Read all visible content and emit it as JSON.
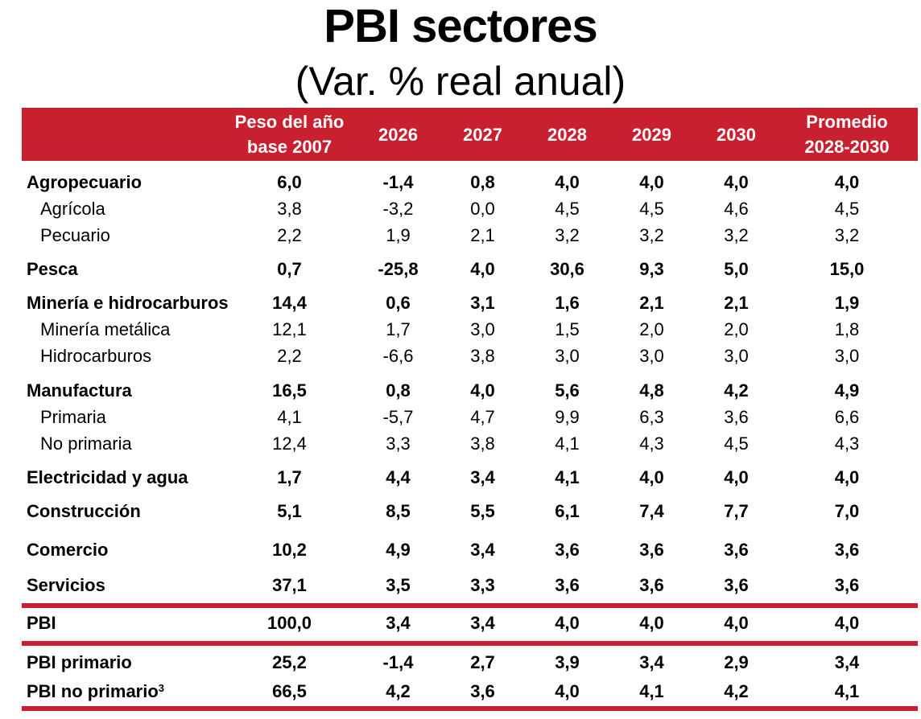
{
  "title": "PBI sectores",
  "subtitle": "(Var. % real anual)",
  "header": {
    "label": "",
    "weight_line1": "Peso del año",
    "weight_line2": "base 2007",
    "y2026": "2026",
    "y2027": "2027",
    "y2028": "2028",
    "y2029": "2029",
    "y2030": "2030",
    "avg_line1": "Promedio",
    "avg_line2": "2028-2030"
  },
  "accent_color": "#c8202f",
  "rows": [
    {
      "label": "Agropecuario",
      "bold": true,
      "values": [
        "6,0",
        "-1,4",
        "0,8",
        "4,0",
        "4,0",
        "4,0",
        "4,0"
      ]
    },
    {
      "label": "Agrícola",
      "bold": false,
      "values": [
        "3,8",
        "-3,2",
        "0,0",
        "4,5",
        "4,5",
        "4,6",
        "4,5"
      ]
    },
    {
      "label": "Pecuario",
      "bold": false,
      "values": [
        "2,2",
        "1,9",
        "2,1",
        "3,2",
        "3,2",
        "3,2",
        "3,2"
      ]
    },
    {
      "label": "Pesca",
      "bold": true,
      "values": [
        "0,7",
        "-25,8",
        "4,0",
        "30,6",
        "9,3",
        "5,0",
        "15,0"
      ]
    },
    {
      "label": "Minería e hidrocarburos",
      "bold": true,
      "values": [
        "14,4",
        "0,6",
        "3,1",
        "1,6",
        "2,1",
        "2,1",
        "1,9"
      ]
    },
    {
      "label": "Minería metálica",
      "bold": false,
      "values": [
        "12,1",
        "1,7",
        "3,0",
        "1,5",
        "2,0",
        "2,0",
        "1,8"
      ]
    },
    {
      "label": "Hidrocarburos",
      "bold": false,
      "values": [
        "2,2",
        "-6,6",
        "3,8",
        "3,0",
        "3,0",
        "3,0",
        "3,0"
      ]
    },
    {
      "label": "Manufactura",
      "bold": true,
      "values": [
        "16,5",
        "0,8",
        "4,0",
        "5,6",
        "4,8",
        "4,2",
        "4,9"
      ]
    },
    {
      "label": "Primaria",
      "bold": false,
      "values": [
        "4,1",
        "-5,7",
        "4,7",
        "9,9",
        "6,3",
        "3,6",
        "6,6"
      ]
    },
    {
      "label": "No primaria",
      "bold": false,
      "values": [
        "12,4",
        "3,3",
        "3,8",
        "4,1",
        "4,3",
        "4,5",
        "4,3"
      ]
    },
    {
      "label": "Electricidad y agua",
      "bold": true,
      "values": [
        "1,7",
        "4,4",
        "3,4",
        "4,1",
        "4,0",
        "4,0",
        "4,0"
      ]
    },
    {
      "label": "Construcción",
      "bold": true,
      "values": [
        "5,1",
        "8,5",
        "5,5",
        "6,1",
        "7,4",
        "7,7",
        "7,0"
      ]
    },
    {
      "label": "Comercio",
      "bold": true,
      "values": [
        "10,2",
        "4,9",
        "3,4",
        "3,6",
        "3,6",
        "3,6",
        "3,6"
      ]
    },
    {
      "label": "Servicios",
      "bold": true,
      "values": [
        "37,1",
        "3,5",
        "3,3",
        "3,6",
        "3,6",
        "3,6",
        "3,6"
      ]
    },
    {
      "label": "PBI",
      "bold": true,
      "values": [
        "100,0",
        "3,4",
        "3,4",
        "4,0",
        "4,0",
        "4,0",
        "4,0"
      ]
    },
    {
      "label": "PBI primario",
      "bold": true,
      "values": [
        "25,2",
        "-1,4",
        "2,7",
        "3,9",
        "3,4",
        "2,9",
        "3,4"
      ]
    },
    {
      "label": "PBI no primario",
      "bold": true,
      "sup": "3",
      "values": [
        "66,5",
        "4,2",
        "3,6",
        "4,0",
        "4,1",
        "4,2",
        "4,1"
      ]
    }
  ]
}
